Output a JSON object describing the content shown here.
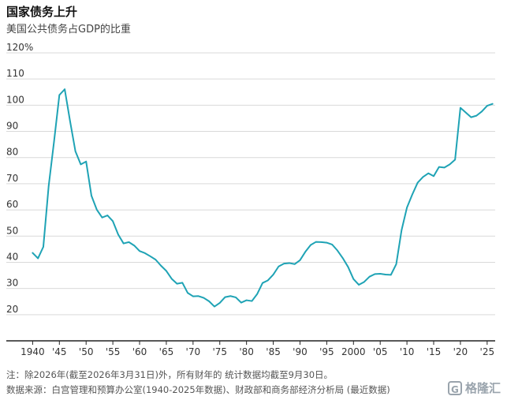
{
  "title": "国家债务上升",
  "subtitle": "美国公共债务占GDP的比重",
  "note": "注：除2026年(截至2026年3月31日)外，所有财年的 统计数据均截至9月30日。",
  "source": "数据来源：白宫管理和预算办公室(1940-2025年数据)、财政部和商务部经济分析局 (最近数据)",
  "watermark": {
    "icon": "G",
    "text": "格隆汇"
  },
  "colors": {
    "line": "#1fa3b5",
    "grid": "#d9d9d9",
    "axis": "#222222",
    "text": "#333333"
  },
  "chart_data": {
    "type": "line",
    "title": "国家债务上升",
    "subtitle": "美国公共债务占GDP的比重",
    "xlabel": "",
    "ylabel": "",
    "xlim": [
      1939.5,
      2026.5
    ],
    "ylim": [
      10,
      120
    ],
    "y_ticks": [
      {
        "value": 20,
        "label": "20"
      },
      {
        "value": 30,
        "label": "30"
      },
      {
        "value": 40,
        "label": "40"
      },
      {
        "value": 50,
        "label": "50"
      },
      {
        "value": 60,
        "label": "60"
      },
      {
        "value": 70,
        "label": "70"
      },
      {
        "value": 80,
        "label": "80"
      },
      {
        "value": 90,
        "label": "90"
      },
      {
        "value": 100,
        "label": "100"
      },
      {
        "value": 110,
        "label": "110"
      },
      {
        "value": 120,
        "label": "120%"
      }
    ],
    "x_ticks": [
      {
        "value": 1940,
        "label": "1940"
      },
      {
        "value": 1945,
        "label": "'45"
      },
      {
        "value": 1950,
        "label": "'50"
      },
      {
        "value": 1955,
        "label": "'55"
      },
      {
        "value": 1960,
        "label": "'60"
      },
      {
        "value": 1965,
        "label": "'65"
      },
      {
        "value": 1970,
        "label": "'70"
      },
      {
        "value": 1975,
        "label": "'75"
      },
      {
        "value": 1980,
        "label": "'80"
      },
      {
        "value": 1985,
        "label": "'85"
      },
      {
        "value": 1990,
        "label": "'90"
      },
      {
        "value": 1995,
        "label": "'95"
      },
      {
        "value": 2000,
        "label": "2000"
      },
      {
        "value": 2005,
        "label": "'05"
      },
      {
        "value": 2010,
        "label": "'10"
      },
      {
        "value": 2015,
        "label": "'15"
      },
      {
        "value": 2020,
        "label": "'20"
      },
      {
        "value": 2025,
        "label": "'25"
      }
    ],
    "grid": true,
    "legend": "none",
    "series": [
      {
        "x": [
          1940,
          1941,
          1942,
          1943,
          1944,
          1945,
          1946,
          1947,
          1948,
          1949,
          1950,
          1951,
          1952,
          1953,
          1954,
          1955,
          1956,
          1957,
          1958,
          1959,
          1960,
          1961,
          1962,
          1963,
          1964,
          1965,
          1966,
          1967,
          1968,
          1969,
          1970,
          1971,
          1972,
          1973,
          1974,
          1975,
          1976,
          1977,
          1978,
          1979,
          1980,
          1981,
          1982,
          1983,
          1984,
          1985,
          1986,
          1987,
          1988,
          1989,
          1990,
          1991,
          1992,
          1993,
          1994,
          1995,
          1996,
          1997,
          1998,
          1999,
          2000,
          2001,
          2002,
          2003,
          2004,
          2005,
          2006,
          2007,
          2008,
          2009,
          2010,
          2011,
          2012,
          2013,
          2014,
          2015,
          2016,
          2017,
          2018,
          2019,
          2020,
          2021,
          2022,
          2023,
          2024,
          2025,
          2026
        ],
        "y": [
          43.6,
          41.5,
          45.9,
          69.2,
          86.1,
          103.9,
          106.1,
          93.9,
          82.4,
          77.4,
          78.5,
          65.4,
          60.1,
          57.1,
          57.9,
          55.7,
          50.6,
          47.2,
          47.7,
          46.4,
          44.3,
          43.5,
          42.3,
          41.0,
          38.7,
          36.7,
          33.7,
          31.8,
          32.2,
          28.3,
          27.0,
          27.1,
          26.4,
          25.1,
          23.1,
          24.5,
          26.7,
          27.1,
          26.6,
          24.6,
          25.5,
          25.2,
          27.9,
          32.1,
          33.1,
          35.3,
          38.4,
          39.5,
          39.7,
          39.3,
          40.8,
          44.0,
          46.6,
          47.8,
          47.7,
          47.5,
          46.8,
          44.5,
          41.6,
          38.2,
          33.6,
          31.4,
          32.5,
          34.5,
          35.5,
          35.6,
          35.3,
          35.2,
          39.3,
          52.3,
          60.9,
          65.9,
          70.4,
          72.6,
          74.0,
          72.9,
          76.4,
          76.2,
          77.4,
          79.2,
          99.0,
          97.2,
          95.4,
          96.0,
          97.6,
          99.8,
          100.5
        ]
      }
    ]
  }
}
